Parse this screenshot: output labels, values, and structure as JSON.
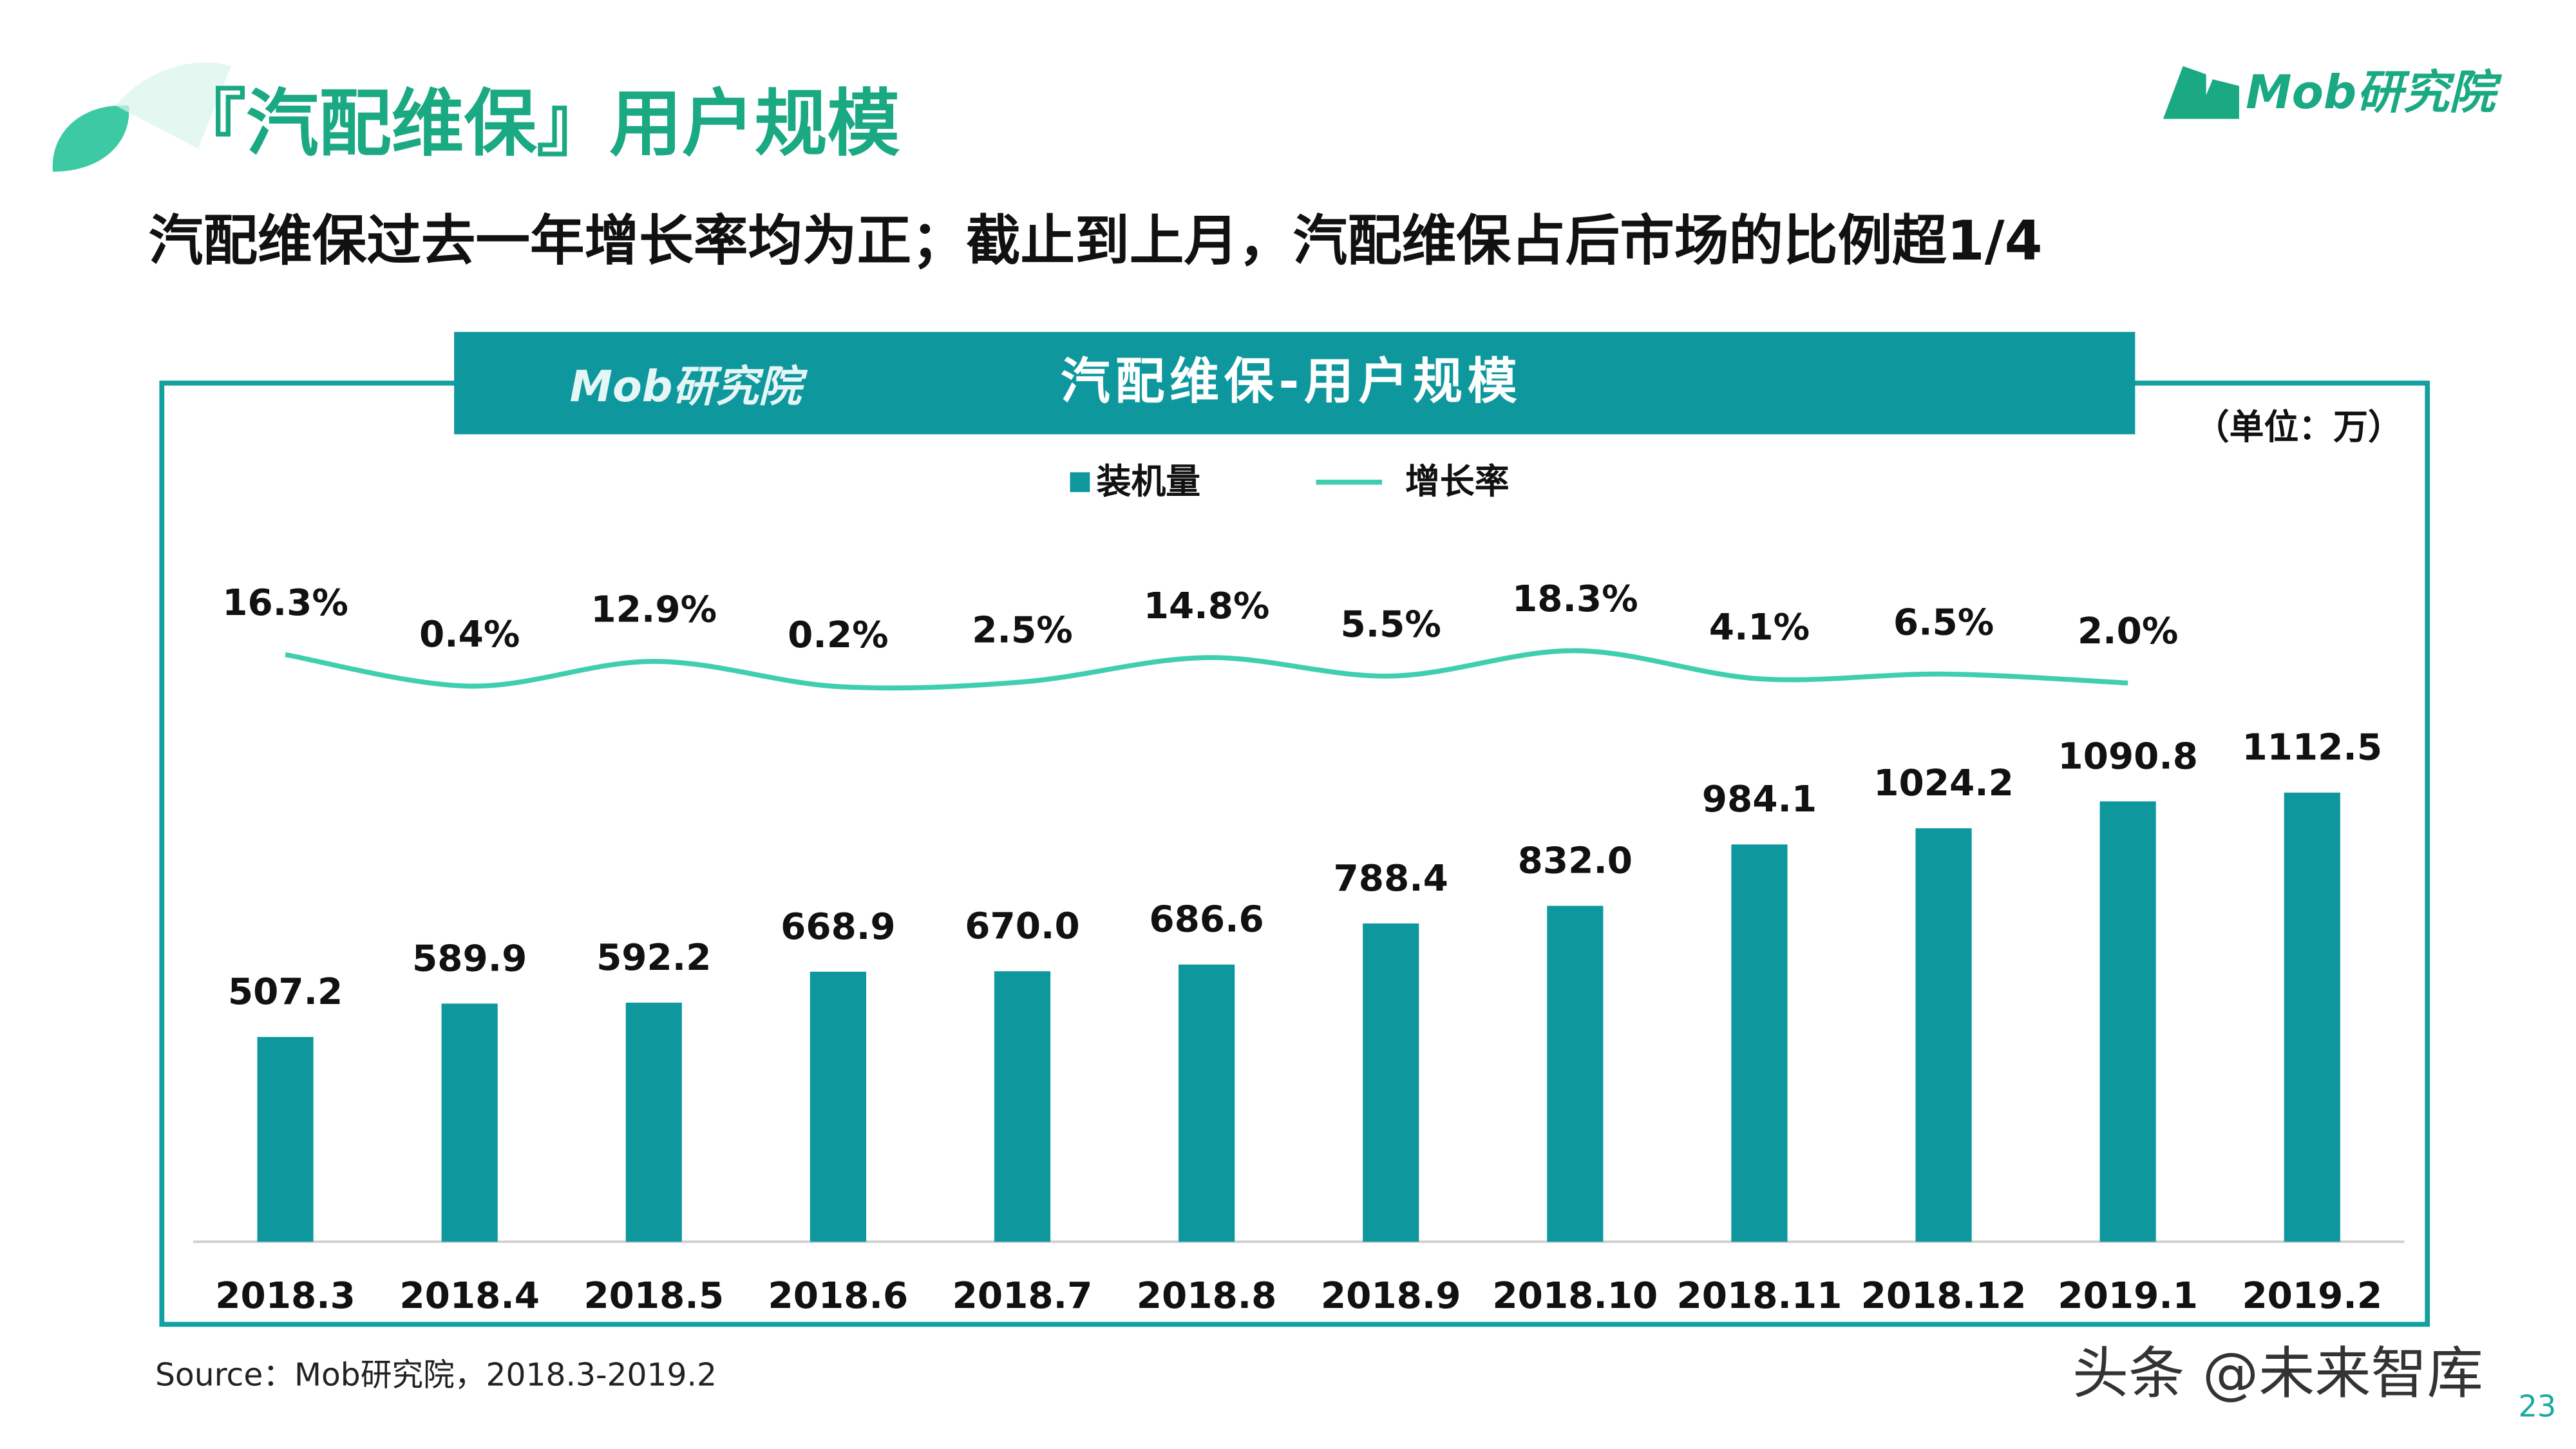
{
  "header": {
    "title": "『汽配维保』用户规模",
    "subtitle": "汽配维保过去一年增长率均为正；截止到上月，汽配维保占后市场的比例超1/4",
    "logo": "Mob研究院"
  },
  "chart_data": {
    "type": "bar",
    "title": "汽配维保-用户规模",
    "logo": "Mob研究院",
    "unit": "（单位：万）",
    "categories": [
      "2018.3",
      "2018.4",
      "2018.5",
      "2018.6",
      "2018.7",
      "2018.8",
      "2018.9",
      "2018.10",
      "2018.11",
      "2018.12",
      "2019.1",
      "2019.2"
    ],
    "series": [
      {
        "name": "装机量",
        "type": "bar",
        "color": "#0e989e",
        "values": [
          507.2,
          589.9,
          592.2,
          668.9,
          670.0,
          686.6,
          788.4,
          832.0,
          984.1,
          1024.2,
          1090.8,
          1112.5
        ],
        "value_labels": [
          "507.2",
          "589.9",
          "592.2",
          "668.9",
          "670.0",
          "686.6",
          "788.4",
          "832.0",
          "984.1",
          "1024.2",
          "1090.8",
          "1112.5"
        ]
      },
      {
        "name": "增长率",
        "type": "line",
        "color": "#3fcfae",
        "values": [
          16.3,
          0.4,
          12.9,
          0.2,
          2.5,
          14.8,
          5.5,
          18.3,
          4.1,
          6.5,
          2.0,
          null
        ],
        "value_labels": [
          "16.3%",
          "0.4%",
          "12.9%",
          "0.2%",
          "2.5%",
          "14.8%",
          "5.5%",
          "18.3%",
          "4.1%",
          "6.5%",
          "2.0%",
          null
        ]
      }
    ]
  },
  "footer": {
    "source": "Source：Mob研究院，2018.3-2019.2",
    "watermark": "头条 @未来智库",
    "page": "23"
  }
}
